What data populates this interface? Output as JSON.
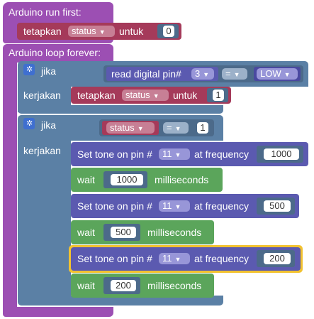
{
  "setup": {
    "title": "Arduino run first:"
  },
  "set1": {
    "keyword": "tetapkan",
    "variable": "status",
    "to": "untuk",
    "value": "0"
  },
  "loop": {
    "title": "Arduino loop forever:"
  },
  "if1": {
    "if_label": "jika",
    "do_label": "kerjakan",
    "read_label": "read digital pin#",
    "pin": "3",
    "op": "=",
    "state": "LOW",
    "set": {
      "keyword": "tetapkan",
      "variable": "status",
      "to": "untuk",
      "value": "1"
    }
  },
  "if2": {
    "if_label": "jika",
    "do_label": "kerjakan",
    "variable": "status",
    "op": "=",
    "value": "1",
    "tone1": {
      "label": "Set tone on pin #",
      "pin": "11",
      "freq_label": "at frequency",
      "freq": "1000"
    },
    "wait1": {
      "label": "wait",
      "ms": "1000",
      "unit": "milliseconds"
    },
    "tone2": {
      "label": "Set tone on pin #",
      "pin": "11",
      "freq_label": "at frequency",
      "freq": "500"
    },
    "wait2": {
      "label": "wait",
      "ms": "500",
      "unit": "milliseconds"
    },
    "tone3": {
      "label": "Set tone on pin #",
      "pin": "11",
      "freq_label": "at frequency",
      "freq": "200"
    },
    "wait3": {
      "label": "wait",
      "ms": "200",
      "unit": "milliseconds"
    }
  },
  "colors": {
    "procedure": "#9c4fb3",
    "logic": "#5b80a5",
    "variable": "#a53a5a",
    "io": "#5b5ab0",
    "time": "#5ba55b",
    "selected": "#f2c230"
  }
}
